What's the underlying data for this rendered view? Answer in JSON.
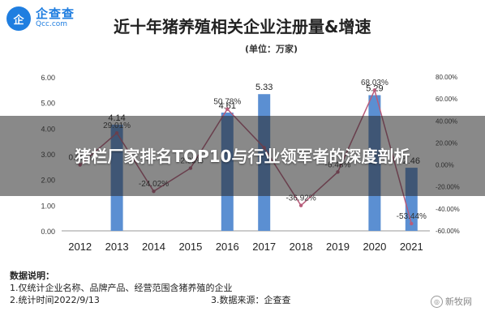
{
  "logo": {
    "badge": "企",
    "cn": "企查查",
    "en": "Qcc.com"
  },
  "title": "近十年猪养殖相关企业注册量&增速",
  "subtitle": "(单位：万家)",
  "overlay_title": "猪栏厂家排名TOP10与行业领军者的深度剖析",
  "chart_data": {
    "type": "bar",
    "categories": [
      "2012",
      "2013",
      "2014",
      "2015",
      "2016",
      "2017",
      "2018",
      "2019",
      "2020",
      "2021"
    ],
    "series": [
      {
        "values": [
          null,
          4.14,
          null,
          null,
          4.61,
          5.33,
          null,
          null,
          5.29,
          2.46
        ],
        "labels": [
          "",
          "4.14",
          "",
          "",
          "4.61",
          "5.33",
          "",
          "",
          "5.29",
          "2.46"
        ]
      },
      {
        "type": "line",
        "values": [
          0.0,
          29.01,
          -24.02,
          -2.95,
          50.78,
          15.62,
          -36.92,
          -6.48,
          68.03,
          -53.44
        ],
        "labels": [
          "0.00%",
          "29.01%",
          "-24.02%",
          "-2.95%",
          "50.78%",
          "",
          "-36.92%",
          "-6.48%",
          "68.03%",
          "-53.44%"
        ]
      }
    ],
    "ylim": [
      0,
      6
    ],
    "y_ticks": [
      "0.00",
      "1.00",
      "2.00",
      "3.00",
      "4.00",
      "5.00",
      "6.00"
    ],
    "y2lim": [
      -60,
      80
    ],
    "y2_ticks": [
      "-60.00%",
      "-40.00%",
      "-20.00%",
      "0.00%",
      "20.00%",
      "40.00%",
      "60.00%",
      "80.00%"
    ],
    "bar_color": "#5b8fd2",
    "line_color": "#b85c7a"
  },
  "notes": {
    "head": "数据说明：",
    "line1": "1.仅统计企业名称、品牌产品、经营范围含猪养殖的企业",
    "line2a": "2.统计时间2022/9/13",
    "line2b": "3.数据来源：企查查"
  },
  "watermark": "新牧网"
}
